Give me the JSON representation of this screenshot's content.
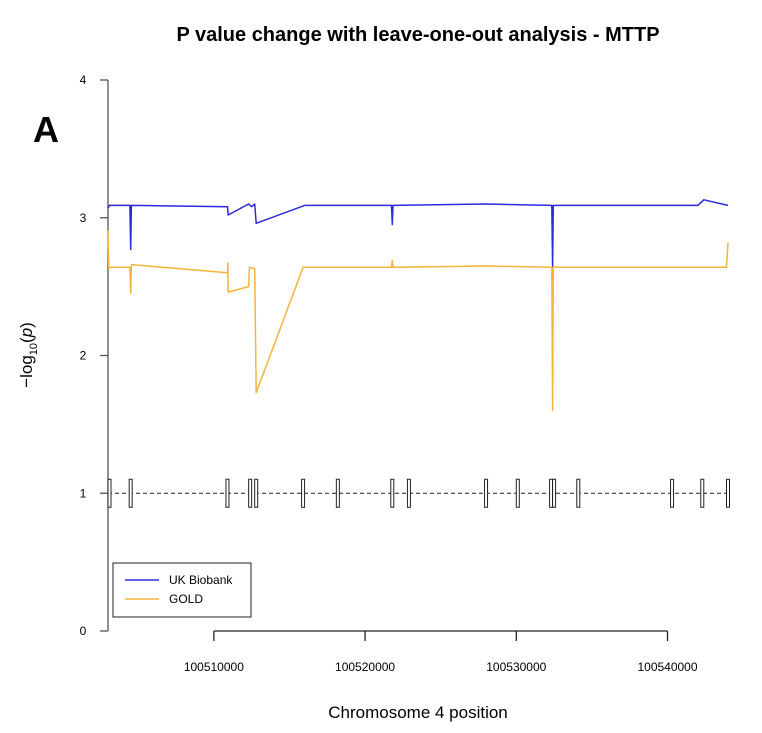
{
  "chart_data": {
    "type": "line",
    "title": "P value change with leave-one-out analysis - MTTP",
    "panel_label": "A",
    "xlabel": "Chromosome 4 position",
    "ylabel_prefix": "−log",
    "ylabel_sub": "10",
    "ylabel_var": "p",
    "xlim": [
      100503000,
      100544000
    ],
    "ylim": [
      0,
      4
    ],
    "xticks": [
      100510000,
      100520000,
      100530000,
      100540000
    ],
    "xtick_labels": [
      "100510000",
      "100520000",
      "100530000",
      "100540000"
    ],
    "yticks": [
      0,
      1,
      2,
      3,
      4
    ],
    "ytick_labels": [
      "0",
      "1",
      "2",
      "3",
      "4"
    ],
    "reference_line": {
      "y": 1,
      "style": "dashed"
    },
    "variant_markers": [
      100503100,
      100504500,
      100510900,
      100512400,
      100512800,
      100515900,
      100518200,
      100521800,
      100522900,
      100528000,
      100530100,
      100532300,
      100532500,
      100534100,
      100540300,
      100542300,
      100544000
    ],
    "legend_position": "bottom-left",
    "series": [
      {
        "name": "UK Biobank",
        "color": "#2b2bde",
        "x": [
          100503000,
          100503100,
          100504450,
          100504500,
          100504550,
          100510900,
          100510950,
          100512300,
          100512500,
          100512700,
          100512800,
          100516000,
          100521750,
          100521800,
          100521850,
          100528000,
          100532350,
          100532400,
          100532450,
          100542000,
          100542400,
          100544000
        ],
        "y": [
          3.07,
          3.09,
          3.09,
          2.77,
          3.09,
          3.08,
          3.02,
          3.1,
          3.08,
          3.1,
          2.96,
          3.09,
          3.09,
          2.95,
          3.09,
          3.1,
          3.09,
          2.64,
          3.09,
          3.09,
          3.13,
          3.09
        ]
      },
      {
        "name": "GOLD",
        "color": "#f5b43c",
        "x": [
          100503000,
          100503050,
          100503150,
          100504450,
          100504500,
          100504550,
          100510900,
          100510920,
          100510950,
          100512300,
          100512350,
          100512700,
          100512800,
          100515900,
          100521750,
          100521800,
          100521850,
          100528000,
          100532350,
          100532400,
          100532450,
          100542000,
          100543900,
          100544000
        ],
        "y": [
          2.91,
          2.63,
          2.64,
          2.64,
          2.45,
          2.66,
          2.6,
          2.67,
          2.46,
          2.5,
          2.64,
          2.63,
          1.73,
          2.64,
          2.64,
          2.69,
          2.64,
          2.65,
          2.64,
          1.6,
          2.64,
          2.64,
          2.64,
          2.82
        ]
      }
    ]
  }
}
